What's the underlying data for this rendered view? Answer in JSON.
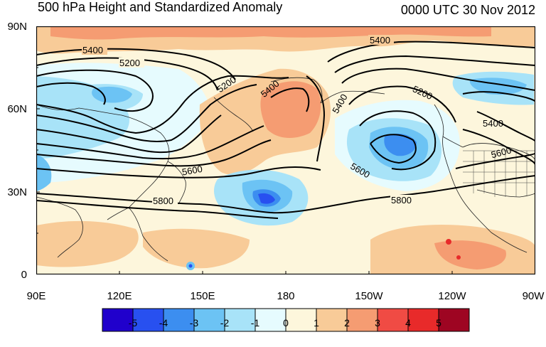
{
  "header": {
    "left": "500 hPa Height and Standardized Anomaly",
    "right": "0000 UTC 30 Nov 2012"
  },
  "axes": {
    "y_labels": [
      "90N",
      "60N",
      "30N",
      "0"
    ],
    "x_labels": [
      "90E",
      "120E",
      "150E",
      "180",
      "150W",
      "120W",
      "90W"
    ]
  },
  "contour_labels": [
    "5400",
    "5200",
    "5200",
    "5400",
    "5400",
    "5400",
    "5200",
    "5400",
    "5600",
    "5600",
    "5600",
    "5800",
    "5800"
  ],
  "colorbar": {
    "labels": [
      "-5",
      "-4",
      "-3",
      "-2",
      "-1",
      "0",
      "1",
      "2",
      "3",
      "4",
      "5"
    ],
    "colors": [
      "#2000cc",
      "#2850f0",
      "#3c8ef0",
      "#6cc3f4",
      "#a8e3f8",
      "#e6fbfe",
      "#fdf6dc",
      "#f8cb98",
      "#f59c72",
      "#f04b44",
      "#e82a2a",
      "#9e0522"
    ]
  }
}
